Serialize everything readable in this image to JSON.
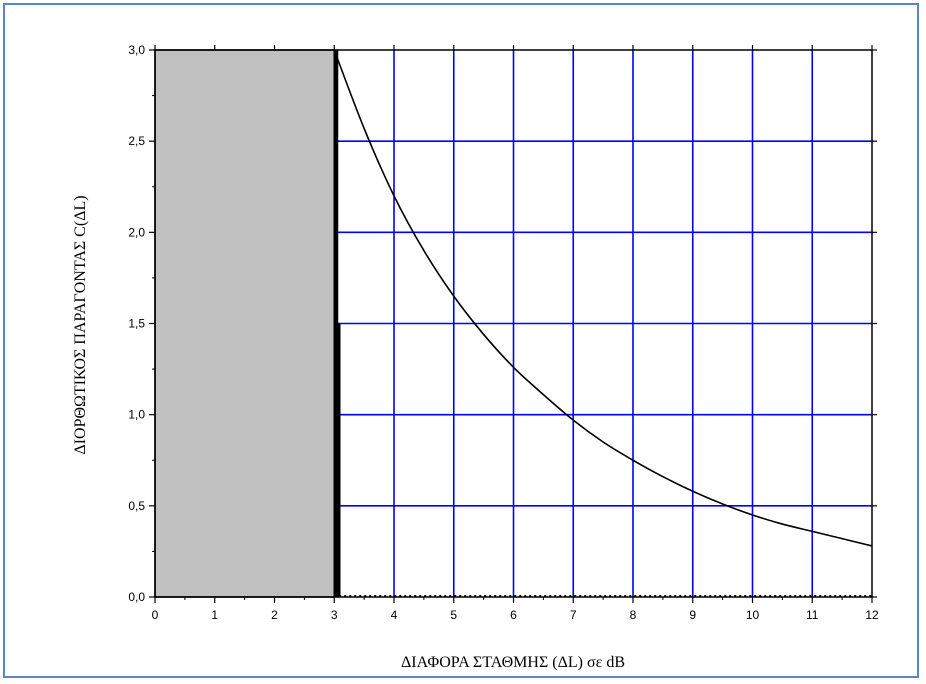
{
  "chart_data": {
    "type": "line",
    "xlabel": "ΔΙΑΦΟΡΑ ΣΤΑΘΜΗΣ   (ΔL)  σε dB",
    "ylabel": "ΔΙΟΡΘΩΤΙΚΟΣ  ΠΑΡΑΓΟΝΤΑΣ   C(ΔL)",
    "xlim": [
      0,
      12
    ],
    "ylim": [
      0,
      3
    ],
    "x_ticks": [
      0,
      1,
      2,
      3,
      4,
      5,
      6,
      7,
      8,
      9,
      10,
      11,
      12
    ],
    "x_tick_labels": [
      "0",
      "1",
      "2",
      "3",
      "4",
      "5",
      "6",
      "7",
      "8",
      "9",
      "10",
      "11",
      "12"
    ],
    "y_ticks": [
      0,
      0.5,
      1,
      1.5,
      2,
      2.5,
      3
    ],
    "y_tick_labels": [
      "0,0",
      "0,5",
      "1,0",
      "1,5",
      "2,0",
      "2,5",
      "3,0"
    ],
    "grid": "on (x ≥ 3)",
    "shaded_region": {
      "x": [
        0,
        3
      ],
      "y": [
        0,
        3
      ]
    },
    "series": [
      {
        "x": [
          3,
          3.5,
          4,
          4.5,
          5,
          5.5,
          6,
          6.5,
          7,
          7.5,
          8,
          8.5,
          9,
          9.5,
          10,
          10.5,
          11,
          11.5,
          12
        ],
        "y": [
          3.0,
          2.57,
          2.2,
          1.9,
          1.65,
          1.44,
          1.26,
          1.11,
          0.97,
          0.85,
          0.75,
          0.66,
          0.58,
          0.51,
          0.45,
          0.4,
          0.36,
          0.32,
          0.28
        ]
      }
    ]
  },
  "colors": {
    "grid": "#0000ff",
    "shade": "#c0c0c0",
    "curve": "#000000",
    "frame_border": "#5b86c5"
  }
}
